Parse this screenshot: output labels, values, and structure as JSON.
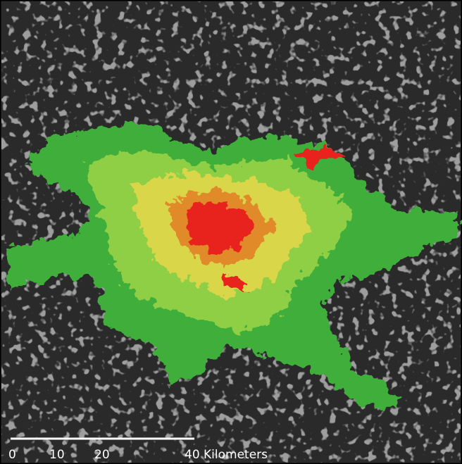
{
  "scale_bar": {
    "labels": [
      "0",
      "10",
      "20",
      "40 Kilometers"
    ]
  }
}
